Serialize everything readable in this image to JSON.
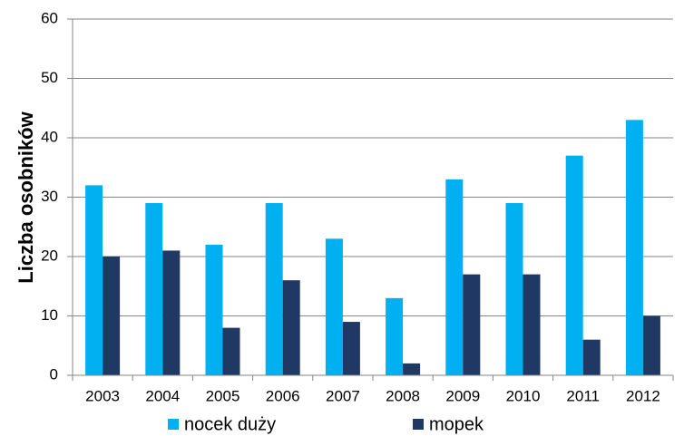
{
  "chart_data": {
    "type": "bar",
    "categories": [
      "2003",
      "2004",
      "2005",
      "2006",
      "2007",
      "2008",
      "2009",
      "2010",
      "2011",
      "2012"
    ],
    "series": [
      {
        "name": "nocek duży",
        "color": "#00b0f0",
        "values": [
          32,
          29,
          22,
          29,
          23,
          13,
          33,
          29,
          37,
          43
        ]
      },
      {
        "name": "mopek",
        "color": "#1f3864",
        "values": [
          20,
          21,
          8,
          16,
          9,
          2,
          17,
          17,
          6,
          10
        ]
      }
    ],
    "ylabel": "Liczba osobników",
    "xlabel": "",
    "title": "",
    "ylim": [
      0,
      60
    ],
    "yticks": [
      "0",
      "10",
      "20",
      "30",
      "40",
      "50",
      "60"
    ],
    "grid": true,
    "legend_position": "bottom"
  }
}
